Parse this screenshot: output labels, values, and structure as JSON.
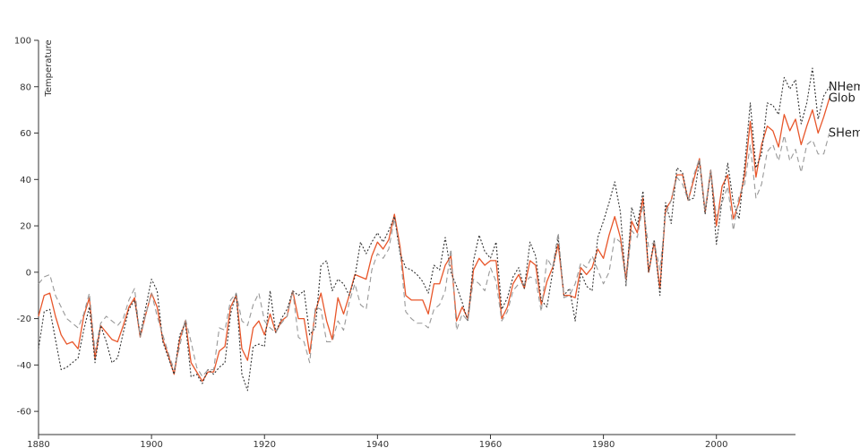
{
  "chart_data": {
    "type": "line",
    "title": "",
    "xlabel": "",
    "ylabel": "Temperature",
    "xlim": [
      1880,
      2014
    ],
    "ylim": [
      -70,
      100
    ],
    "xticks": [
      "1880",
      "1900",
      "1920",
      "1940",
      "1960",
      "1980",
      "2000"
    ],
    "yticks": [
      "100",
      "80",
      "60",
      "40",
      "20",
      "0",
      "-20",
      "-40",
      "-60"
    ],
    "grid": false,
    "series": [
      {
        "name": "Glob",
        "color": "#e8562a",
        "dash": "solid",
        "x_start": 1880,
        "values": [
          -19,
          -10,
          -9,
          -19,
          -27,
          -31,
          -30,
          -33,
          -19,
          -11,
          -37,
          -23,
          -26,
          -29,
          -30,
          -23,
          -15,
          -11,
          -28,
          -18,
          -9,
          -15,
          -29,
          -36,
          -44,
          -29,
          -21,
          -39,
          -43,
          -47,
          -43,
          -43,
          -34,
          -32,
          -15,
          -10,
          -33,
          -38,
          -24,
          -21,
          -27,
          -18,
          -26,
          -21,
          -19,
          -8,
          -20,
          -20,
          -35,
          -17,
          -9,
          -21,
          -29,
          -11,
          -18,
          -10,
          -1,
          -2,
          -3,
          7,
          13,
          10,
          14,
          25,
          11,
          -10,
          -12,
          -12,
          -12,
          -18,
          -5,
          -5,
          3,
          7,
          -21,
          -15,
          -20,
          1,
          6,
          3,
          5,
          5,
          -20,
          -15,
          -5,
          -1,
          -7,
          5,
          3,
          -14,
          -4,
          2,
          12,
          -10,
          -10,
          -11,
          2,
          -1,
          2,
          10,
          6,
          16,
          24,
          15,
          -3,
          22,
          17,
          32,
          0,
          13,
          -7,
          27,
          31,
          42,
          42,
          31,
          40,
          49,
          26,
          44,
          20,
          37,
          42,
          23,
          30,
          42,
          65,
          41,
          55,
          63,
          61,
          54,
          68,
          61,
          66,
          55,
          63,
          70,
          60,
          67,
          75
        ]
      },
      {
        "name": "NHem",
        "color": "#333333",
        "dash": "dotted",
        "x_start": 1880,
        "values": [
          -33,
          -17,
          -16,
          -29,
          -42,
          -41,
          -39,
          -37,
          -25,
          -15,
          -39,
          -23,
          -30,
          -39,
          -37,
          -26,
          -16,
          -12,
          -27,
          -15,
          -3,
          -8,
          -30,
          -37,
          -44,
          -27,
          -22,
          -45,
          -44,
          -48,
          -42,
          -44,
          -41,
          -39,
          -18,
          -9,
          -44,
          -51,
          -32,
          -31,
          -32,
          -8,
          -26,
          -20,
          -16,
          -8,
          -10,
          -8,
          -27,
          -24,
          3,
          5,
          -8,
          -3,
          -5,
          -10,
          -2,
          13,
          8,
          13,
          17,
          13,
          18,
          24,
          8,
          2,
          1,
          -1,
          -4,
          -9,
          3,
          1,
          15,
          0,
          -6,
          -13,
          -21,
          5,
          16,
          9,
          6,
          13,
          -16,
          -11,
          -2,
          2,
          -7,
          13,
          7,
          -12,
          -15,
          0,
          15,
          -10,
          -7,
          -21,
          0,
          -6,
          -8,
          15,
          22,
          30,
          39,
          26,
          -6,
          28,
          20,
          35,
          0,
          14,
          -10,
          30,
          21,
          45,
          43,
          31,
          32,
          48,
          25,
          44,
          12,
          31,
          47,
          30,
          23,
          46,
          73,
          45,
          51,
          73,
          72,
          68,
          84,
          79,
          83,
          64,
          73,
          88,
          66,
          76,
          80
        ]
      },
      {
        "name": "SHem",
        "color": "#999999",
        "dash": "dashed",
        "x_start": 1880,
        "values": [
          -5,
          -2,
          -1,
          -10,
          -15,
          -20,
          -22,
          -24,
          -18,
          -9,
          -34,
          -22,
          -19,
          -21,
          -23,
          -20,
          -12,
          -7,
          -28,
          -18,
          -9,
          -19,
          -27,
          -35,
          -42,
          -32,
          -20,
          -30,
          -41,
          -45,
          -42,
          -42,
          -24,
          -25,
          -12,
          -9,
          -21,
          -23,
          -14,
          -9,
          -21,
          -24,
          -26,
          -22,
          -19,
          -8,
          -28,
          -30,
          -39,
          -15,
          -16,
          -30,
          -30,
          -21,
          -25,
          -13,
          -5,
          -14,
          -16,
          1,
          8,
          6,
          10,
          23,
          9,
          -17,
          -20,
          -22,
          -22,
          -24,
          -16,
          -14,
          -8,
          10,
          -25,
          -18,
          -21,
          -3,
          -5,
          -8,
          2,
          -4,
          -21,
          -17,
          -8,
          -5,
          -5,
          -2,
          -3,
          -17,
          6,
          2,
          17,
          -11,
          -10,
          -5,
          4,
          2,
          7,
          1,
          -5,
          0,
          15,
          13,
          -5,
          18,
          15,
          29,
          11,
          13,
          1,
          25,
          31,
          41,
          38,
          31,
          42,
          49,
          27,
          44,
          24,
          30,
          37,
          18,
          33,
          38,
          55,
          32,
          38,
          52,
          55,
          48,
          59,
          48,
          53,
          43,
          55,
          57,
          51,
          51,
          60
        ]
      }
    ]
  }
}
